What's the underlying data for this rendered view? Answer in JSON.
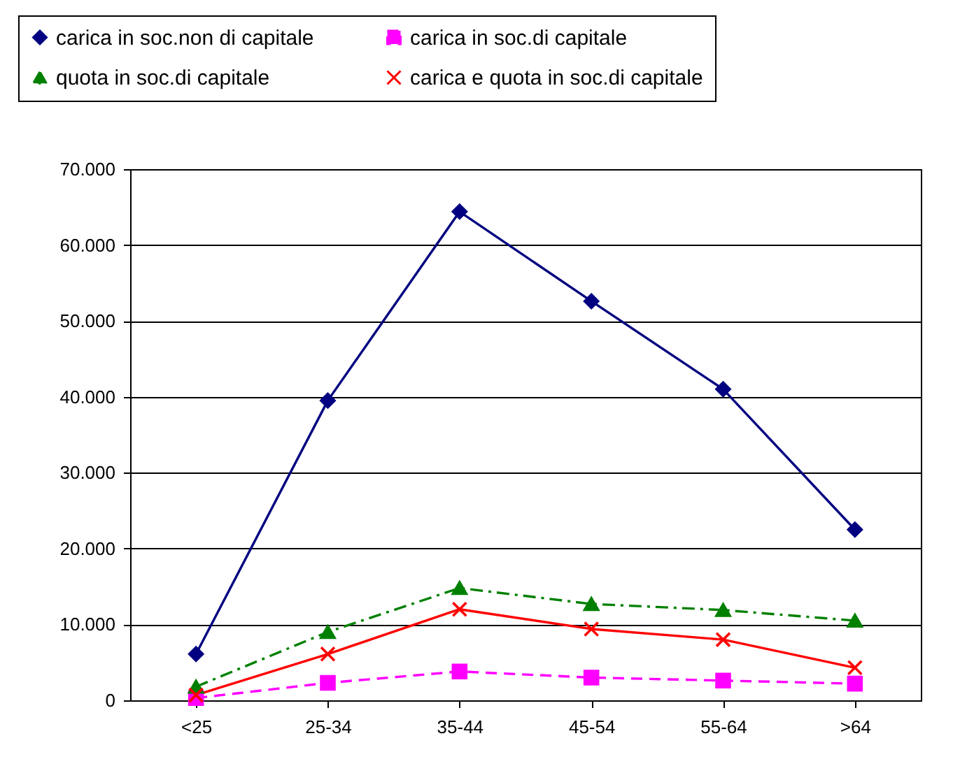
{
  "chart_data": {
    "type": "line",
    "categories": [
      "<25",
      "25-34",
      "35-44",
      "45-54",
      "55-64",
      ">64"
    ],
    "series": [
      {
        "name": "carica in soc.non di capitale",
        "color": "#000080",
        "marker": "diamond",
        "line_style": "solid",
        "values": [
          6100,
          39500,
          64400,
          52600,
          41000,
          22500
        ]
      },
      {
        "name": "carica in soc.di capitale",
        "color": "#ff00ff",
        "marker": "square",
        "line_style": "dashed",
        "values": [
          300,
          2300,
          3800,
          3000,
          2600,
          2200
        ]
      },
      {
        "name": "quota in soc.di capitale",
        "color": "#008000",
        "marker": "triangle",
        "line_style": "dashdot",
        "values": [
          1800,
          9000,
          14800,
          12700,
          11900,
          10500
        ]
      },
      {
        "name": "carica e quota in soc.di capitale",
        "color": "#ff0000",
        "marker": "cross",
        "line_style": "solid",
        "values": [
          700,
          6100,
          12000,
          9400,
          8000,
          4300
        ]
      }
    ],
    "ylim": [
      0,
      70000
    ],
    "yticks": [
      {
        "value": 0,
        "label": "0"
      },
      {
        "value": 10000,
        "label": "10.000"
      },
      {
        "value": 20000,
        "label": "20.000"
      },
      {
        "value": 30000,
        "label": "30.000"
      },
      {
        "value": 40000,
        "label": "40.000"
      },
      {
        "value": 50000,
        "label": "50.000"
      },
      {
        "value": 60000,
        "label": "60.000"
      },
      {
        "value": 70000,
        "label": "70.000"
      }
    ],
    "grid": "y",
    "legend": "top"
  }
}
